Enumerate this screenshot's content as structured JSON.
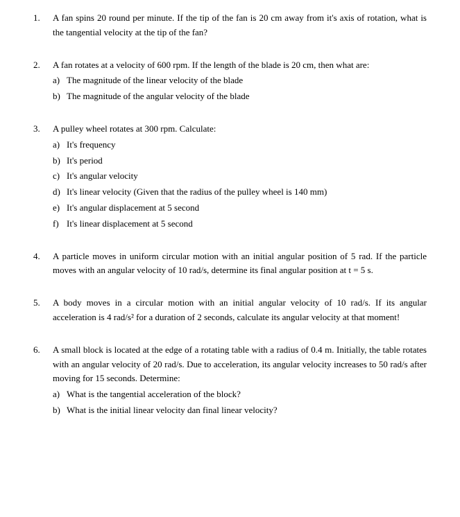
{
  "problems": [
    {
      "number": "1.",
      "text": "A fan spins 20 round per minute. If the tip of the fan is 20 cm away from it's axis of rotation, what is the tangential velocity at the tip of the fan?",
      "subs": []
    },
    {
      "number": "2.",
      "text": "A fan rotates at a velocity of 600 rpm. If the length of the blade is 20 cm, then what are:",
      "subs": [
        {
          "label": "a)",
          "text": "The magnitude of the linear velocity of the blade"
        },
        {
          "label": "b)",
          "text": "The magnitude of the angular velocity of the blade"
        }
      ]
    },
    {
      "number": "3.",
      "text": "A pulley wheel rotates at 300 rpm. Calculate:",
      "subs": [
        {
          "label": "a)",
          "text": "It's frequency"
        },
        {
          "label": "b)",
          "text": "It's period"
        },
        {
          "label": "c)",
          "text": "It's angular velocity"
        },
        {
          "label": "d)",
          "text": "It's linear velocity (Given that the radius of the pulley wheel is 140 mm)"
        },
        {
          "label": "e)",
          "text": "It's angular displacement at 5 second"
        },
        {
          "label": "f)",
          "text": "It's linear displacement at 5 second"
        }
      ]
    },
    {
      "number": "4.",
      "text": "A particle moves in uniform circular motion with an initial angular position of 5 rad. If the particle moves with an angular velocity of 10 rad/s, determine its final angular position at t = 5 s.",
      "subs": []
    },
    {
      "number": "5.",
      "text": "A body moves in a circular motion with an initial angular velocity of 10 rad/s. If its angular acceleration is 4 rad/s² for a duration of 2 seconds, calculate its angular velocity at that moment!",
      "subs": []
    },
    {
      "number": "6.",
      "text": "A small block is located at the edge of a rotating table with a radius of 0.4 m. Initially, the table rotates with an angular velocity of 20 rad/s. Due to acceleration, its angular velocity increases to 50 rad/s after moving for 15 seconds. Determine:",
      "subs": [
        {
          "label": "a)",
          "text": "What is the tangential acceleration of the block?"
        },
        {
          "label": "b)",
          "text": "What is the initial linear velocity dan final linear velocity?"
        }
      ]
    }
  ]
}
